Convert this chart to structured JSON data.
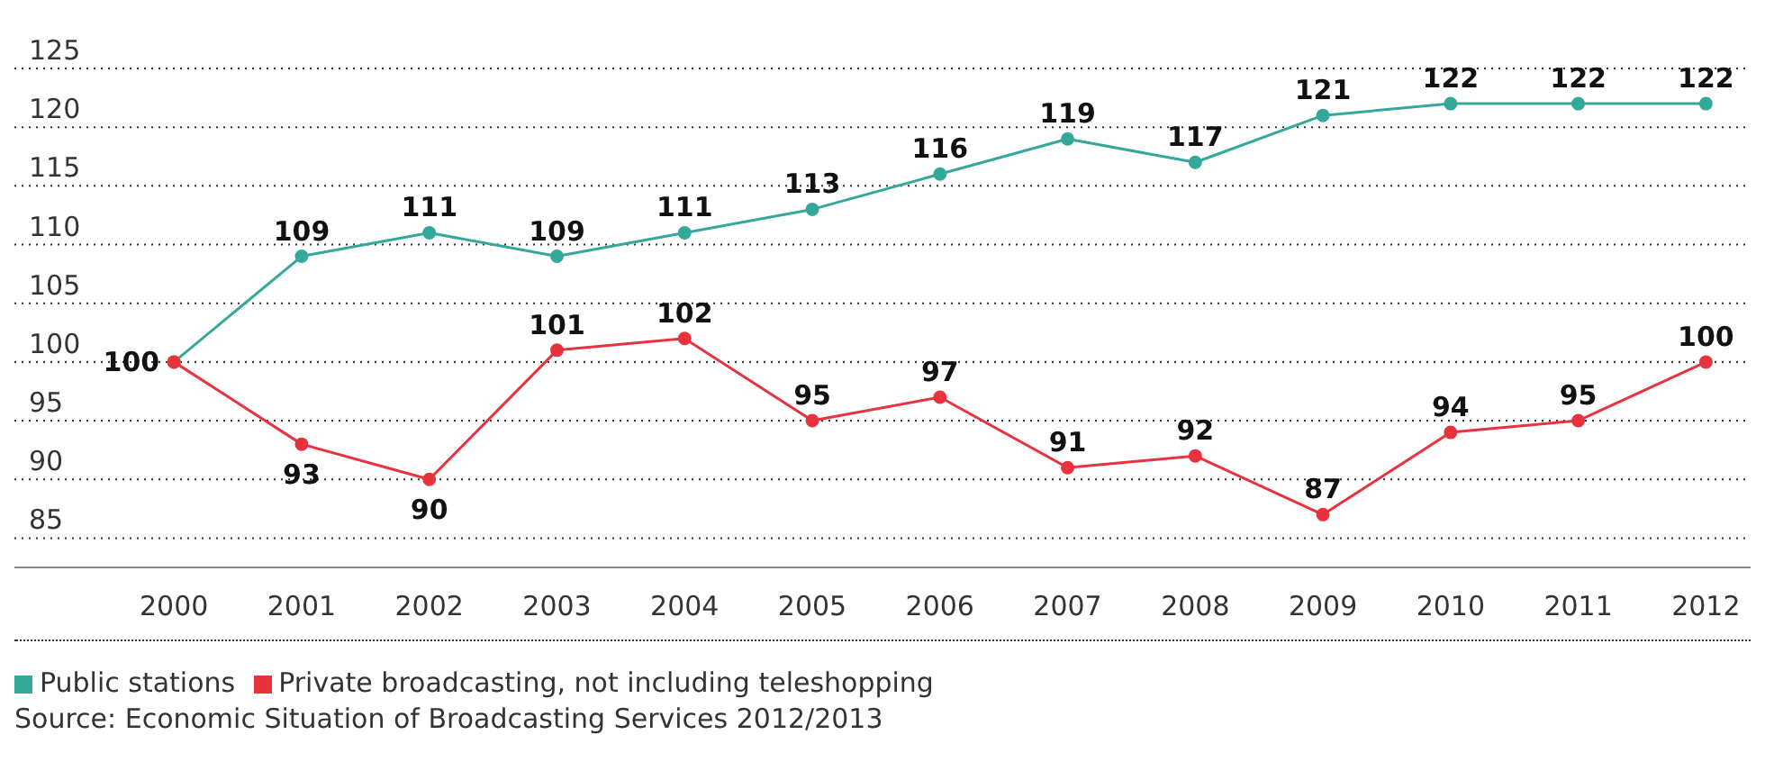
{
  "chart_data": {
    "type": "line",
    "categories": [
      "2000",
      "2001",
      "2002",
      "2003",
      "2004",
      "2005",
      "2006",
      "2007",
      "2008",
      "2009",
      "2010",
      "2011",
      "2012"
    ],
    "series": [
      {
        "name": "Public stations",
        "color": "#34a89a",
        "values": [
          100,
          109,
          111,
          109,
          111,
          113,
          116,
          119,
          117,
          121,
          122,
          122,
          122
        ],
        "value_labels": [
          "100",
          "109",
          "111",
          "109",
          "111",
          "113",
          "116",
          "119",
          "117",
          "121",
          "122",
          "122",
          "122"
        ]
      },
      {
        "name": "Private broadcasting, not including teleshopping",
        "color": "#e8333f",
        "values": [
          100,
          93,
          90,
          101,
          102,
          95,
          97,
          91,
          92,
          87,
          94,
          95,
          100
        ],
        "value_labels": [
          null,
          "93",
          "90",
          "101",
          "102",
          "95",
          "97",
          "91",
          "92",
          "87",
          "94",
          "95",
          "100"
        ]
      }
    ],
    "ylim": [
      82.5,
      125
    ],
    "yticks": [
      85,
      90,
      95,
      100,
      105,
      110,
      115,
      120,
      125
    ],
    "grid": "y",
    "legend": "bottom left",
    "marker": "circle",
    "line_style": "solid",
    "annotations": [
      "Source: Economic Situation of Broadcasting Services 2012/2013"
    ]
  }
}
